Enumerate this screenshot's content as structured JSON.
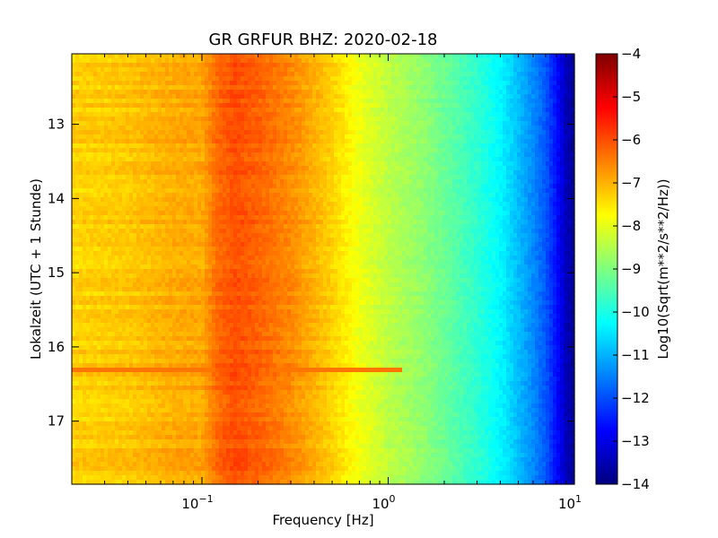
{
  "chart_data": {
    "type": "heatmap",
    "title": "GR GRFUR BHZ: 2020-02-18",
    "xlabel": "Frequency [Hz]",
    "ylabel": "Lokalzeit (UTC + 1 Stunde)",
    "x_scale": "log",
    "xlim": [
      0.02,
      10
    ],
    "x_tick_values": [
      0.1,
      1,
      10
    ],
    "x_tick_labels": [
      {
        "base": "10",
        "exp": "−1"
      },
      {
        "base": "10",
        "exp": "0"
      },
      {
        "base": "10",
        "exp": "1"
      }
    ],
    "ylim": [
      17.85,
      12.05
    ],
    "y_inverted": true,
    "y_ticks": [
      13,
      14,
      15,
      16,
      17
    ],
    "colorbar": {
      "label": "Log10(Sqrt(m**2/s**2/Hz))",
      "range": [
        -14,
        -4
      ],
      "ticks": [
        -4,
        -5,
        -6,
        -7,
        -8,
        -9,
        -10,
        -11,
        -12,
        -13,
        -14
      ],
      "colormap": "jet"
    },
    "spectrum_profile": {
      "frequency_hz": [
        0.02,
        0.04,
        0.06,
        0.08,
        0.1,
        0.12,
        0.15,
        0.2,
        0.3,
        0.5,
        0.7,
        1.0,
        1.5,
        2,
        3,
        4,
        5,
        6,
        7,
        8,
        9,
        10
      ],
      "log10_amplitude": [
        -7.3,
        -7.2,
        -7.0,
        -6.9,
        -6.9,
        -6.3,
        -6.0,
        -6.2,
        -6.6,
        -7.3,
        -7.9,
        -8.4,
        -8.8,
        -9.2,
        -9.8,
        -10.3,
        -10.9,
        -11.4,
        -11.9,
        -12.6,
        -13.4,
        -13.8
      ]
    },
    "events": [
      {
        "time": 16.3,
        "freq_range_hz": [
          0.02,
          1.2
        ],
        "log10_amplitude": -6.4
      }
    ]
  }
}
